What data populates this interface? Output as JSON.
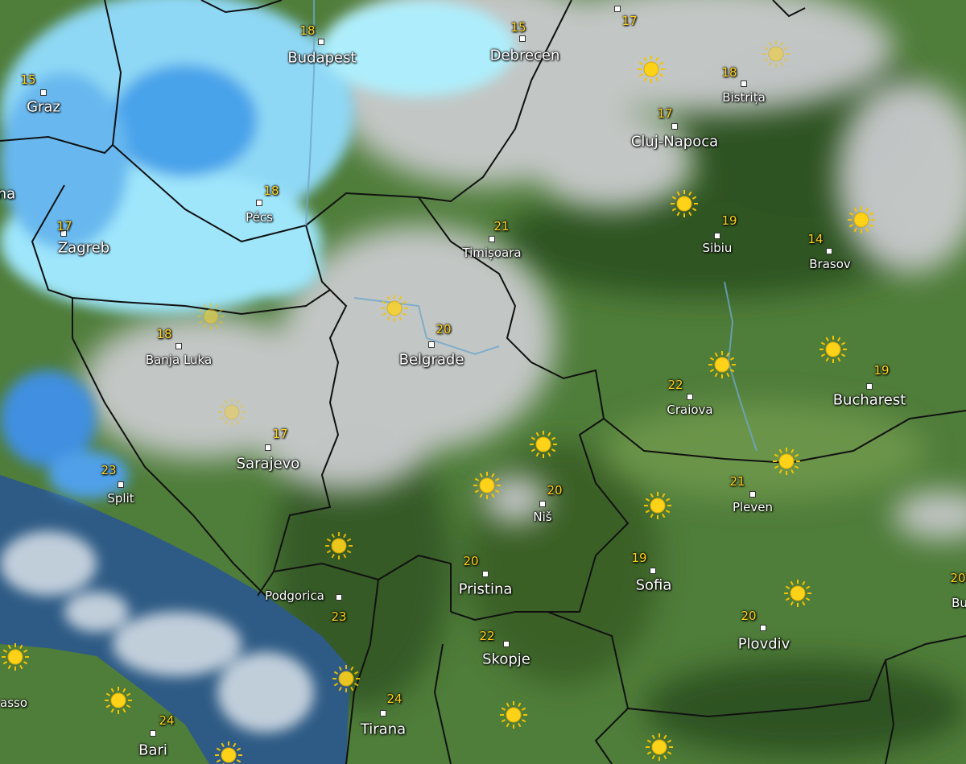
{
  "cities": [
    {
      "name": "Budapest",
      "temperature": 18
    },
    {
      "name": "Debrecen",
      "temperature": 15
    },
    {
      "temperature": 17
    },
    {
      "name": "Graz",
      "temperature": 15
    },
    {
      "name": "Bistrița",
      "temperature": 18
    },
    {
      "name": "Cluj-Napoca",
      "temperature": 17
    },
    {
      "name": "na"
    },
    {
      "name": "Pécs",
      "temperature": 18
    },
    {
      "name": "Zagreb",
      "temperature": 17
    },
    {
      "name": "Timișoara",
      "temperature": 21
    },
    {
      "name": "Sibiu",
      "temperature": 19
    },
    {
      "name": "Brasov",
      "temperature": 14
    },
    {
      "name": "Banja Luka",
      "temperature": 18
    },
    {
      "name": "Belgrade",
      "temperature": 20
    },
    {
      "name": "Bucharest",
      "temperature": 19
    },
    {
      "name": "Craiova",
      "temperature": 22
    },
    {
      "name": "Sarajevo",
      "temperature": 17
    },
    {
      "name": "Split",
      "temperature": 23
    },
    {
      "name": "Niš",
      "temperature": 20
    },
    {
      "name": "Pleven",
      "temperature": 21
    },
    {
      "name": "Pristina",
      "temperature": 20
    },
    {
      "name": "Sofia",
      "temperature": 19
    },
    {
      "name": "Podgorica",
      "temperature": 23
    },
    {
      "name": "Skopje",
      "temperature": 22
    },
    {
      "name": "Plovdiv",
      "temperature": 20
    },
    {
      "name": "Tirana",
      "temperature": 24
    },
    {
      "name": "Bari",
      "temperature": 24
    },
    {
      "name": "asso"
    },
    {
      "name": "Bu",
      "temperature": 20
    }
  ]
}
